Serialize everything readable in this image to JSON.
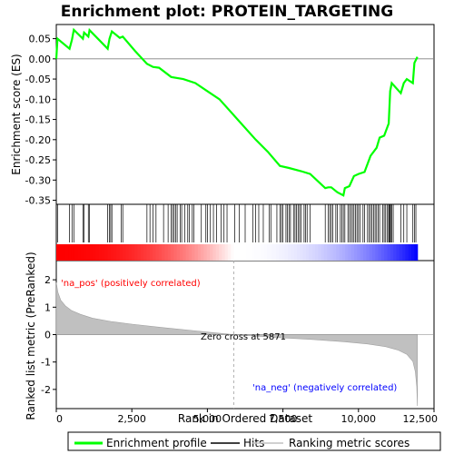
{
  "chart_data": {
    "type": "line",
    "title": "Enrichment plot: PROTEIN_TARGETING",
    "xlabel": "Rank in Ordered Dataset",
    "ylabel_top": "Enrichment score (ES)",
    "ylabel_bottom": "Ranked list metric (PreRanked)",
    "x_ticks": [
      0,
      2500,
      5000,
      7500,
      10000,
      12500
    ],
    "x_tick_labels": [
      "0",
      "2,500",
      "5,000",
      "7,500",
      "10,000",
      "12,500"
    ],
    "xlim": [
      0,
      12500
    ],
    "es_ylim": [
      -0.36,
      0.085
    ],
    "es_ticks": [
      0.05,
      0.0,
      -0.05,
      -0.1,
      -0.15,
      -0.2,
      -0.25,
      -0.3,
      -0.35
    ],
    "es_tick_labels": [
      "0.05",
      "0.00",
      "-0.05",
      "-0.10",
      "-0.15",
      "-0.20",
      "-0.25",
      "-0.30",
      "-0.35"
    ],
    "metric_ylim": [
      -2.7,
      2.7
    ],
    "metric_ticks": [
      2,
      1,
      0,
      -1,
      -2
    ],
    "metric_tick_labels": [
      "2",
      "1",
      "0",
      "-1",
      "-2"
    ],
    "n_genes": 11950,
    "zero_cross": 5871,
    "zero_cross_label": "Zero cross at 5871",
    "pos_label": "'na_pos' (positively correlated)",
    "neg_label": "'na_neg' (negatively correlated)",
    "colors": {
      "es_line": "#00ff00",
      "pos": "#ff0000",
      "neg": "#0000ff",
      "metric_fill": "#c0c0c0"
    },
    "es_points": [
      [
        0,
        0.0
      ],
      [
        40,
        0.05
      ],
      [
        440,
        0.025
      ],
      [
        520,
        0.048
      ],
      [
        580,
        0.072
      ],
      [
        880,
        0.05
      ],
      [
        920,
        0.065
      ],
      [
        1060,
        0.055
      ],
      [
        1100,
        0.071
      ],
      [
        1700,
        0.025
      ],
      [
        1760,
        0.05
      ],
      [
        1840,
        0.068
      ],
      [
        2100,
        0.052
      ],
      [
        2200,
        0.055
      ],
      [
        2600,
        0.02
      ],
      [
        3000,
        -0.012
      ],
      [
        3200,
        -0.02
      ],
      [
        3400,
        -0.022
      ],
      [
        3800,
        -0.045
      ],
      [
        4200,
        -0.05
      ],
      [
        4600,
        -0.06
      ],
      [
        5000,
        -0.08
      ],
      [
        5400,
        -0.1
      ],
      [
        6000,
        -0.15
      ],
      [
        6600,
        -0.2
      ],
      [
        7000,
        -0.23
      ],
      [
        7400,
        -0.265
      ],
      [
        7700,
        -0.27
      ],
      [
        8100,
        -0.278
      ],
      [
        8400,
        -0.285
      ],
      [
        8900,
        -0.32
      ],
      [
        9000,
        -0.318
      ],
      [
        9100,
        -0.318
      ],
      [
        9300,
        -0.33
      ],
      [
        9500,
        -0.338
      ],
      [
        9550,
        -0.32
      ],
      [
        9700,
        -0.315
      ],
      [
        9850,
        -0.29
      ],
      [
        10000,
        -0.285
      ],
      [
        10200,
        -0.28
      ],
      [
        10400,
        -0.24
      ],
      [
        10600,
        -0.22
      ],
      [
        10700,
        -0.195
      ],
      [
        10850,
        -0.19
      ],
      [
        11000,
        -0.16
      ],
      [
        11050,
        -0.08
      ],
      [
        11100,
        -0.06
      ],
      [
        11400,
        -0.085
      ],
      [
        11500,
        -0.06
      ],
      [
        11600,
        -0.05
      ],
      [
        11800,
        -0.06
      ],
      [
        11850,
        -0.01
      ],
      [
        11950,
        0.005
      ]
    ],
    "hit_ranks": [
      40,
      440,
      520,
      580,
      880,
      920,
      1060,
      1100,
      1700,
      1760,
      1800,
      1840,
      2150,
      2200,
      3000,
      3100,
      3200,
      3300,
      3550,
      3700,
      3800,
      3850,
      3900,
      3950,
      4000,
      4100,
      4150,
      4250,
      4350,
      4400,
      4500,
      4550,
      4800,
      4950,
      5000,
      5100,
      5200,
      5300,
      5450,
      5550,
      5650,
      5900,
      6050,
      6250,
      6500,
      6600,
      6700,
      6850,
      7050,
      7100,
      7300,
      7400,
      7450,
      7500,
      7600,
      7650,
      7700,
      7750,
      7850,
      7900,
      7950,
      8000,
      8050,
      8100,
      8200,
      8250,
      8300,
      8400,
      8900,
      9000,
      9050,
      9100,
      9150,
      9250,
      9300,
      9400,
      9450,
      9500,
      9550,
      9650,
      9700,
      9750,
      9800,
      9850,
      9900,
      9950,
      10000,
      10050,
      10150,
      10200,
      10300,
      10350,
      10400,
      10450,
      10500,
      10550,
      10600,
      10650,
      10700,
      10800,
      10850,
      10900,
      10950,
      11000,
      11020,
      11050,
      11080,
      11100,
      11150,
      11400,
      11500,
      11600,
      11800,
      11850,
      11900
    ],
    "metric_points": [
      [
        0,
        1.9
      ],
      [
        50,
        1.55
      ],
      [
        150,
        1.25
      ],
      [
        300,
        1.05
      ],
      [
        500,
        0.88
      ],
      [
        800,
        0.74
      ],
      [
        1200,
        0.6
      ],
      [
        1800,
        0.48
      ],
      [
        2500,
        0.38
      ],
      [
        3500,
        0.26
      ],
      [
        4500,
        0.15
      ],
      [
        5300,
        0.06
      ],
      [
        5871,
        0.0
      ],
      [
        6500,
        -0.05
      ],
      [
        7500,
        -0.12
      ],
      [
        8500,
        -0.18
      ],
      [
        9500,
        -0.26
      ],
      [
        10300,
        -0.34
      ],
      [
        10900,
        -0.44
      ],
      [
        11300,
        -0.56
      ],
      [
        11600,
        -0.72
      ],
      [
        11800,
        -0.98
      ],
      [
        11880,
        -1.35
      ],
      [
        11930,
        -1.9
      ],
      [
        11950,
        -2.6
      ]
    ],
    "legend": [
      {
        "label": "Enrichment profile",
        "color": "#00ff00"
      },
      {
        "label": "Hits",
        "color": "#000000"
      },
      {
        "label": "Ranking metric scores",
        "color": "#c0c0c0"
      }
    ]
  }
}
